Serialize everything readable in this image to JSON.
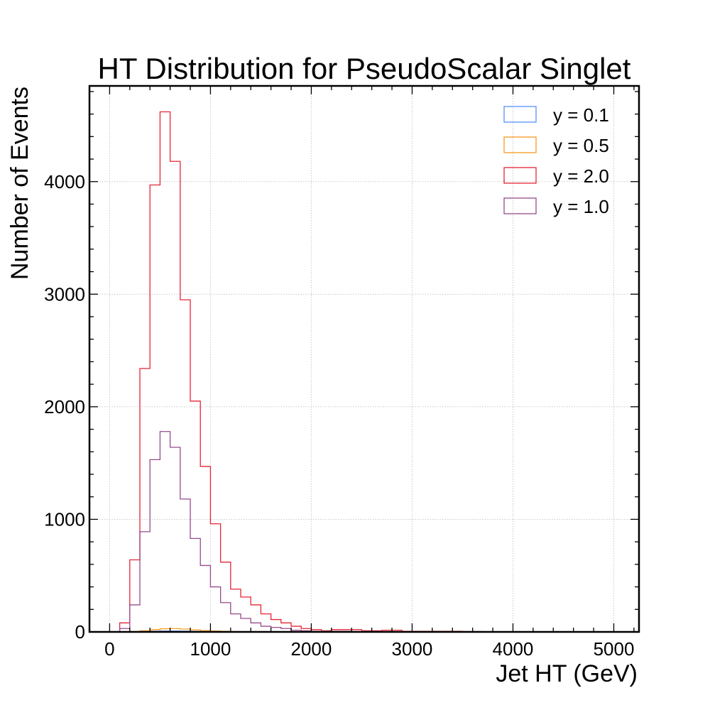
{
  "chart_data": {
    "type": "histogram",
    "title": "HT Distribution for PseudoScalar Singlet",
    "xlabel": "Jet HT (GeV)",
    "ylabel": "Number of Events",
    "xlim": [
      -200,
      5250
    ],
    "ylim": [
      0,
      4850
    ],
    "xticks": [
      0,
      1000,
      2000,
      3000,
      4000,
      5000
    ],
    "xtick_labels": [
      "0",
      "1000",
      "2000",
      "3000",
      "4000",
      "5000"
    ],
    "yticks": [
      0,
      1000,
      2000,
      3000,
      4000
    ],
    "ytick_labels": [
      "0",
      "1000",
      "2000",
      "3000",
      "4000"
    ],
    "grid": true,
    "legend_position": "top-right",
    "bin_edges": [
      0,
      100,
      200,
      300,
      400,
      500,
      600,
      700,
      800,
      900,
      1000,
      1100,
      1200,
      1300,
      1400,
      1500,
      1600,
      1700,
      1800,
      1900,
      2000,
      2100,
      2200,
      2300,
      2400,
      2500,
      2600,
      2700,
      2800,
      2900,
      3000,
      3100,
      3200,
      3300,
      3400,
      3500,
      3600,
      3700,
      3800,
      3900,
      4000,
      4100,
      4200,
      4300,
      4400,
      4500,
      4600,
      4700,
      4800,
      4900,
      5000
    ],
    "series": [
      {
        "name": "y = 0.1",
        "color": "#5790fc",
        "values": [
          0,
          0,
          1,
          3,
          6,
          8,
          8,
          7,
          5,
          4,
          3,
          2,
          1,
          1,
          1,
          0,
          0,
          0,
          0,
          0,
          0,
          0,
          0,
          0,
          0,
          0,
          0,
          0,
          0,
          0,
          0,
          0,
          0,
          0,
          0,
          0,
          0,
          0,
          0,
          0,
          0,
          0,
          0,
          0,
          0,
          0,
          0,
          0,
          0,
          0
        ]
      },
      {
        "name": "y = 0.5",
        "color": "#f89c20",
        "values": [
          0,
          1,
          4,
          10,
          20,
          28,
          30,
          25,
          18,
          12,
          8,
          5,
          3,
          2,
          1,
          1,
          0,
          0,
          0,
          0,
          0,
          0,
          0,
          0,
          0,
          0,
          0,
          0,
          0,
          0,
          0,
          0,
          0,
          0,
          0,
          0,
          0,
          0,
          0,
          0,
          0,
          0,
          0,
          0,
          0,
          0,
          0,
          0,
          0,
          0
        ]
      },
      {
        "name": "y = 2.0",
        "color": "#e42536",
        "values": [
          0,
          80,
          640,
          2340,
          3970,
          4620,
          4180,
          2950,
          2050,
          1470,
          960,
          620,
          380,
          310,
          240,
          160,
          110,
          80,
          50,
          30,
          20,
          10,
          20,
          20,
          20,
          10,
          10,
          15,
          15,
          5,
          5,
          5,
          5,
          5,
          5,
          3,
          3,
          2,
          2,
          2,
          2,
          2,
          2,
          1,
          1,
          1,
          1,
          1,
          1,
          1
        ]
      },
      {
        "name": "y = 1.0",
        "color": "#964a8b",
        "values": [
          0,
          30,
          240,
          890,
          1530,
          1780,
          1640,
          1180,
          830,
          590,
          400,
          260,
          160,
          120,
          80,
          50,
          40,
          30,
          15,
          10,
          5,
          5,
          5,
          5,
          3,
          3,
          3,
          3,
          2,
          2,
          2,
          2,
          2,
          1,
          1,
          1,
          1,
          1,
          1,
          1,
          0,
          0,
          0,
          0,
          0,
          0,
          0,
          0,
          0,
          0
        ]
      }
    ]
  }
}
